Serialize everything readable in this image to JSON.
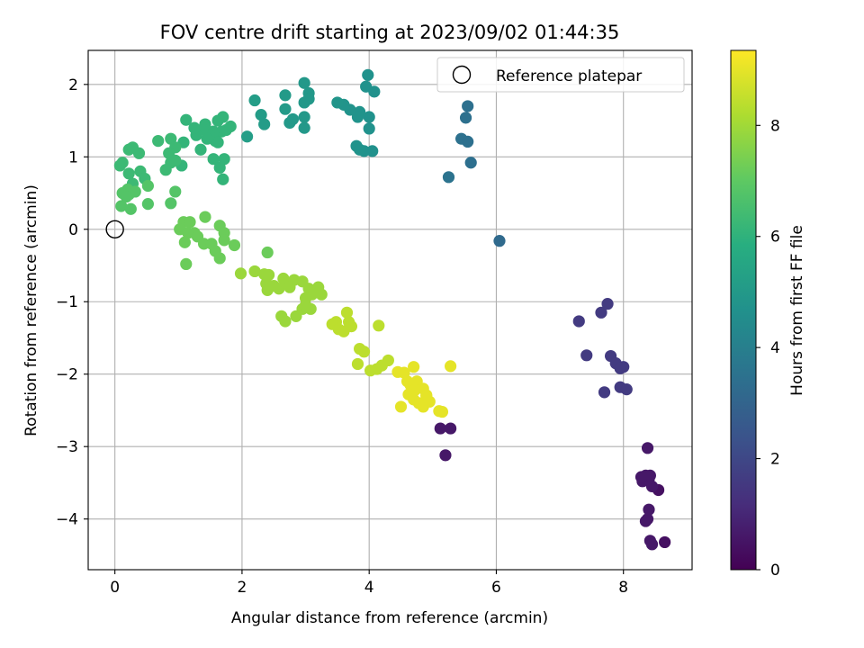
{
  "chart_data": {
    "type": "scatter",
    "title": "FOV centre drift starting at 2023/09/02 01:44:35",
    "xlabel": "Angular distance from reference (arcmin)",
    "ylabel": "Rotation from reference (arcmin)",
    "xlim": [
      -0.42,
      9.08
    ],
    "ylim": [
      -4.7,
      2.47
    ],
    "xticks": [
      0,
      2,
      4,
      6,
      8
    ],
    "yticks": [
      -4,
      -3,
      -2,
      -1,
      0,
      1,
      2
    ],
    "grid": true,
    "legend": {
      "position": "top-right",
      "entries": [
        "Reference platepar"
      ]
    },
    "reference_point": {
      "x": 0,
      "y": 0
    },
    "colorbar": {
      "label": "Hours from first FF file",
      "colormap": "viridis",
      "range": [
        0,
        9.35
      ],
      "ticks": [
        0,
        2,
        4,
        6,
        8
      ]
    },
    "series": [
      {
        "values": [
          [
            8.65,
            -4.32
          ],
          [
            8.42,
            -4.3
          ],
          [
            8.45,
            -4.35
          ],
          [
            8.38,
            -4.0
          ],
          [
            8.35,
            -4.03
          ],
          [
            8.4,
            -3.87
          ],
          [
            8.55,
            -3.6
          ],
          [
            8.45,
            -3.55
          ],
          [
            8.3,
            -3.48
          ],
          [
            8.4,
            -3.45
          ],
          [
            8.35,
            -3.4
          ],
          [
            8.42,
            -3.4
          ],
          [
            8.28,
            -3.42
          ],
          [
            8.38,
            -3.02
          ],
          [
            7.7,
            -2.25
          ],
          [
            7.95,
            -2.18
          ],
          [
            8.05,
            -2.21
          ],
          [
            7.8,
            -1.75
          ],
          [
            7.88,
            -1.85
          ],
          [
            8.0,
            -1.9
          ],
          [
            7.95,
            -1.92
          ],
          [
            7.42,
            -1.74
          ],
          [
            7.3,
            -1.27
          ],
          [
            7.65,
            -1.15
          ],
          [
            7.75,
            -1.03
          ],
          [
            6.05,
            -0.16
          ],
          [
            5.25,
            0.72
          ],
          [
            5.6,
            0.92
          ],
          [
            5.45,
            1.25
          ],
          [
            5.55,
            1.21
          ],
          [
            5.52,
            1.54
          ],
          [
            5.55,
            1.7
          ],
          [
            4.05,
            1.08
          ],
          [
            3.92,
            1.08
          ],
          [
            3.8,
            1.15
          ],
          [
            3.85,
            1.1
          ],
          [
            4.0,
            1.39
          ],
          [
            4.0,
            1.55
          ],
          [
            3.85,
            1.62
          ],
          [
            3.82,
            1.55
          ],
          [
            3.7,
            1.65
          ],
          [
            3.6,
            1.72
          ],
          [
            3.5,
            1.75
          ],
          [
            3.95,
            1.97
          ],
          [
            4.08,
            1.9
          ],
          [
            3.98,
            2.13
          ],
          [
            2.98,
            2.02
          ],
          [
            3.05,
            1.88
          ],
          [
            2.98,
            1.75
          ],
          [
            3.05,
            1.8
          ],
          [
            2.68,
            1.85
          ],
          [
            2.68,
            1.66
          ],
          [
            2.3,
            1.58
          ],
          [
            2.35,
            1.45
          ],
          [
            2.2,
            1.78
          ],
          [
            2.75,
            1.47
          ],
          [
            2.8,
            1.52
          ],
          [
            2.98,
            1.4
          ],
          [
            2.98,
            1.55
          ],
          [
            2.08,
            1.28
          ],
          [
            1.7,
            1.55
          ],
          [
            1.75,
            1.37
          ],
          [
            1.82,
            1.42
          ],
          [
            1.68,
            1.35
          ],
          [
            1.62,
            1.5
          ],
          [
            1.58,
            1.22
          ],
          [
            1.62,
            1.2
          ],
          [
            1.55,
            1.35
          ],
          [
            1.48,
            1.3
          ],
          [
            1.42,
            1.45
          ],
          [
            1.38,
            1.38
          ],
          [
            1.45,
            1.25
          ],
          [
            1.35,
            1.1
          ],
          [
            1.28,
            1.3
          ],
          [
            1.25,
            1.4
          ],
          [
            1.12,
            1.51
          ],
          [
            1.08,
            1.2
          ],
          [
            1.55,
            0.97
          ],
          [
            1.65,
            0.85
          ],
          [
            1.72,
            0.97
          ],
          [
            1.7,
            0.69
          ],
          [
            0.68,
            1.22
          ],
          [
            0.88,
            1.25
          ],
          [
            0.95,
            1.13
          ],
          [
            0.85,
            1.05
          ],
          [
            0.88,
            0.92
          ],
          [
            0.8,
            0.82
          ],
          [
            1.05,
            0.88
          ],
          [
            0.95,
            0.95
          ],
          [
            0.38,
            1.05
          ],
          [
            0.22,
            1.1
          ],
          [
            0.28,
            1.13
          ],
          [
            0.08,
            0.88
          ],
          [
            0.12,
            0.92
          ],
          [
            0.22,
            0.77
          ],
          [
            0.4,
            0.8
          ],
          [
            0.47,
            0.7
          ],
          [
            0.28,
            0.63
          ],
          [
            0.2,
            0.55
          ],
          [
            0.12,
            0.5
          ],
          [
            0.32,
            0.52
          ],
          [
            0.52,
            0.6
          ],
          [
            0.22,
            0.48
          ],
          [
            0.18,
            0.45
          ],
          [
            0.1,
            0.32
          ],
          [
            0.25,
            0.28
          ],
          [
            0.52,
            0.35
          ],
          [
            0.95,
            0.52
          ],
          [
            0.88,
            0.36
          ],
          [
            1.08,
            0.1
          ],
          [
            1.18,
            0.1
          ],
          [
            1.42,
            0.17
          ],
          [
            1.02,
            0.0
          ],
          [
            1.15,
            -0.05
          ],
          [
            1.25,
            -0.05
          ],
          [
            1.1,
            -0.18
          ],
          [
            1.3,
            -0.1
          ],
          [
            1.4,
            -0.2
          ],
          [
            1.52,
            -0.2
          ],
          [
            1.65,
            0.05
          ],
          [
            1.72,
            -0.05
          ],
          [
            1.72,
            -0.15
          ],
          [
            1.58,
            -0.3
          ],
          [
            1.65,
            -0.4
          ],
          [
            1.12,
            -0.48
          ],
          [
            1.88,
            -0.22
          ],
          [
            1.98,
            -0.61
          ],
          [
            2.2,
            -0.58
          ],
          [
            2.4,
            -0.32
          ],
          [
            2.35,
            -0.62
          ],
          [
            2.42,
            -0.63
          ],
          [
            2.38,
            -0.75
          ],
          [
            2.4,
            -0.84
          ],
          [
            2.5,
            -0.78
          ],
          [
            2.58,
            -0.82
          ],
          [
            2.65,
            -0.68
          ],
          [
            2.7,
            -0.75
          ],
          [
            2.82,
            -0.7
          ],
          [
            2.75,
            -0.8
          ],
          [
            2.95,
            -0.72
          ],
          [
            3.05,
            -0.82
          ],
          [
            3.1,
            -0.9
          ],
          [
            3.0,
            -0.95
          ],
          [
            3.2,
            -0.8
          ],
          [
            3.25,
            -0.9
          ],
          [
            2.62,
            -1.2
          ],
          [
            2.68,
            -1.27
          ],
          [
            2.85,
            -1.2
          ],
          [
            2.95,
            -1.1
          ],
          [
            3.08,
            -1.1
          ],
          [
            3.0,
            -1.05
          ],
          [
            3.48,
            -1.28
          ],
          [
            3.42,
            -1.31
          ],
          [
            3.52,
            -1.38
          ],
          [
            3.6,
            -1.41
          ],
          [
            3.68,
            -1.28
          ],
          [
            3.65,
            -1.15
          ],
          [
            3.72,
            -1.34
          ],
          [
            4.15,
            -1.33
          ],
          [
            3.85,
            -1.65
          ],
          [
            3.92,
            -1.69
          ],
          [
            3.82,
            -1.86
          ],
          [
            4.02,
            -1.95
          ],
          [
            4.12,
            -1.93
          ],
          [
            4.2,
            -1.88
          ],
          [
            4.3,
            -1.81
          ],
          [
            4.45,
            -1.97
          ],
          [
            4.55,
            -1.98
          ],
          [
            4.7,
            -1.9
          ],
          [
            4.6,
            -2.1
          ],
          [
            4.65,
            -2.15
          ],
          [
            4.75,
            -2.1
          ],
          [
            4.72,
            -2.22
          ],
          [
            4.85,
            -2.2
          ],
          [
            4.9,
            -2.29
          ],
          [
            4.62,
            -2.28
          ],
          [
            4.7,
            -2.35
          ],
          [
            4.78,
            -2.4
          ],
          [
            4.85,
            -2.45
          ],
          [
            4.95,
            -2.38
          ],
          [
            4.5,
            -2.45
          ],
          [
            4.9,
            -2.3
          ],
          [
            5.1,
            -2.51
          ],
          [
            5.15,
            -2.52
          ],
          [
            5.28,
            -1.89
          ],
          [
            5.12,
            -2.75
          ],
          [
            5.28,
            -2.75
          ],
          [
            5.2,
            -3.12
          ]
        ]
      }
    ]
  }
}
